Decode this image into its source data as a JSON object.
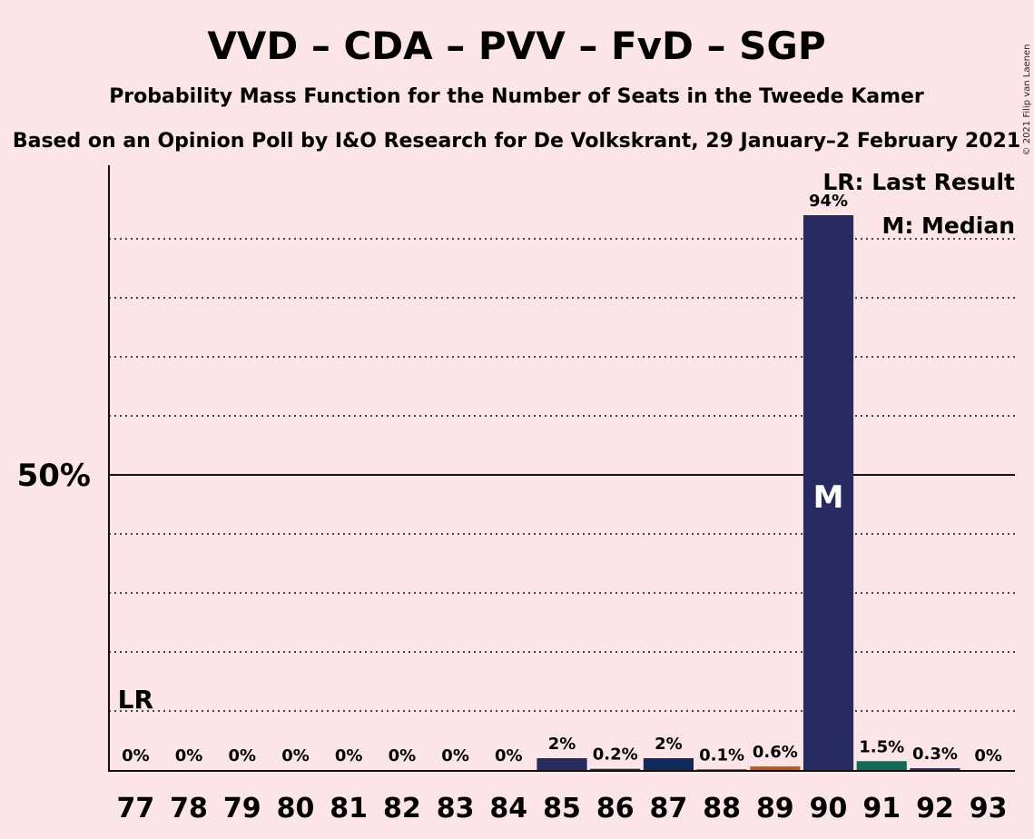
{
  "title": "VVD – CDA – PVV – FvD – SGP",
  "subtitle1": "Probability Mass Function for the Number of Seats in the Tweede Kamer",
  "subtitle2": "Based on an Opinion Poll by I&O Research for De Volkskrant, 29 January–2 February 2021",
  "copyright": "© 2021 Filip van Laenen",
  "legend": {
    "lr": "LR: Last Result",
    "median": "M: Median"
  },
  "markers": {
    "lr_text": "LR",
    "median_text": "M"
  },
  "colors": {
    "background": "#fbe5e6",
    "VVD": "#262b62",
    "CDA": "#262b62",
    "PVV": "#0f2a5b",
    "FvD": "#b25b2a",
    "SGP": "#116b56"
  },
  "chart_data": {
    "type": "bar",
    "categories": [
      "77",
      "78",
      "79",
      "80",
      "81",
      "82",
      "83",
      "84",
      "85",
      "86",
      "87",
      "88",
      "89",
      "90",
      "91",
      "92",
      "93"
    ],
    "values": [
      0,
      0,
      0,
      0,
      0,
      0,
      0,
      0,
      2,
      0.2,
      2,
      0.1,
      0.6,
      94,
      1.5,
      0.3,
      0
    ],
    "labels": [
      "0%",
      "0%",
      "0%",
      "0%",
      "0%",
      "0%",
      "0%",
      "0%",
      "2%",
      "0.2%",
      "2%",
      "0.1%",
      "0.6%",
      "94%",
      "1.5%",
      "0.3%",
      "0%"
    ],
    "bar_colors": [
      "#262b62",
      "#262b62",
      "#262b62",
      "#262b62",
      "#262b62",
      "#262b62",
      "#262b62",
      "#262b62",
      "#262b62",
      "#262b62",
      "#0f2a5b",
      "#262b62",
      "#b25b2a",
      "#262b62",
      "#116b56",
      "#262b62",
      "#262b62"
    ],
    "ylim": [
      0,
      100
    ],
    "yticks": [
      {
        "value": 50,
        "label": "50%"
      }
    ],
    "gridlines": [
      10,
      20,
      30,
      40,
      60,
      70,
      80,
      90
    ],
    "last_result": "77",
    "median": "90",
    "grid": true,
    "legend_position": "top-right"
  }
}
